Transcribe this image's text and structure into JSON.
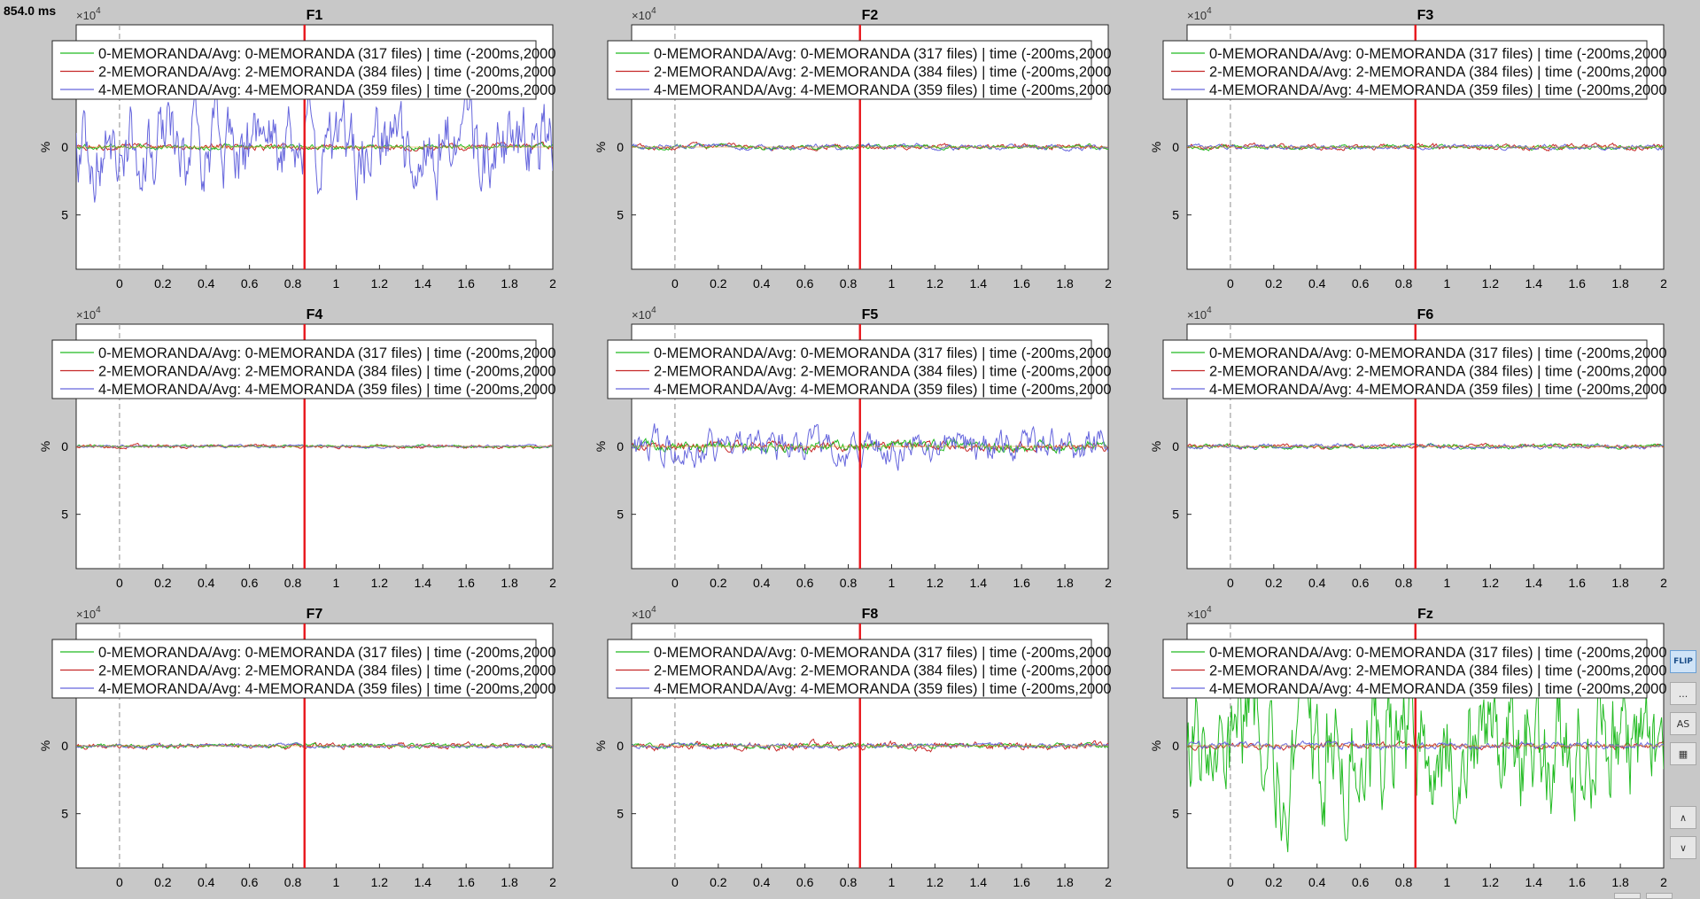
{
  "current_time_label": "854.0 ms",
  "chart_data": {
    "type": "line",
    "layout": "3x3 grid",
    "xlim": [
      -0.2,
      2.0
    ],
    "ylim": [
      -9,
      9
    ],
    "xticks": [
      0,
      0.2,
      0.4,
      0.6,
      0.8,
      1,
      1.2,
      1.4,
      1.6,
      1.8,
      2
    ],
    "xtick_labels": [
      "0",
      "0.2",
      "0.4",
      "0.6",
      "0.8",
      "1",
      "1.2",
      "1.4",
      "1.6",
      "1.8",
      "2"
    ],
    "yticks": [
      0,
      5
    ],
    "ytick_labels": [
      "0",
      "5"
    ],
    "ylabel": "%",
    "y_exponent_label": "×10",
    "y_exponent_power": "4",
    "cursor_x": 0.854,
    "zero_line_x": 0,
    "grid": false,
    "legend_placement": "top",
    "colors": {
      "cursor": "#e8171c",
      "zero_line": "#a0a0a0",
      "axes_bg": "#ffffff"
    },
    "series": [
      {
        "name": "0-MEMORANDA/Avg: 0-MEMORANDA (317 files) | time (-200ms,2000",
        "color": "#22bb22"
      },
      {
        "name": "2-MEMORANDA/Avg: 2-MEMORANDA (384 files) | time (-200ms,2000",
        "color": "#c62828"
      },
      {
        "name": "4-MEMORANDA/Avg: 4-MEMORANDA (359 files) | time (-200ms,2000",
        "color": "#6666dd"
      }
    ],
    "panels": [
      {
        "title": "F1",
        "amplitudes": [
          0.12,
          0.15,
          1.9
        ]
      },
      {
        "title": "F2",
        "amplitudes": [
          0.1,
          0.12,
          0.12
        ]
      },
      {
        "title": "F3",
        "amplitudes": [
          0.1,
          0.12,
          0.1
        ]
      },
      {
        "title": "F4",
        "amplitudes": [
          0.06,
          0.08,
          0.06
        ]
      },
      {
        "title": "F5",
        "amplitudes": [
          0.25,
          0.2,
          0.75
        ]
      },
      {
        "title": "F6",
        "amplitudes": [
          0.1,
          0.1,
          0.1
        ]
      },
      {
        "title": "F7",
        "amplitudes": [
          0.1,
          0.12,
          0.08
        ]
      },
      {
        "title": "F8",
        "amplitudes": [
          0.1,
          0.18,
          0.1
        ]
      },
      {
        "title": "Fz",
        "amplitudes": [
          3.0,
          0.15,
          0.15
        ]
      }
    ]
  },
  "toolbar": {
    "flip_label": "FLIP",
    "more_label": "...",
    "as_label": "AS",
    "up_label": "∧",
    "down_label": "∨"
  }
}
